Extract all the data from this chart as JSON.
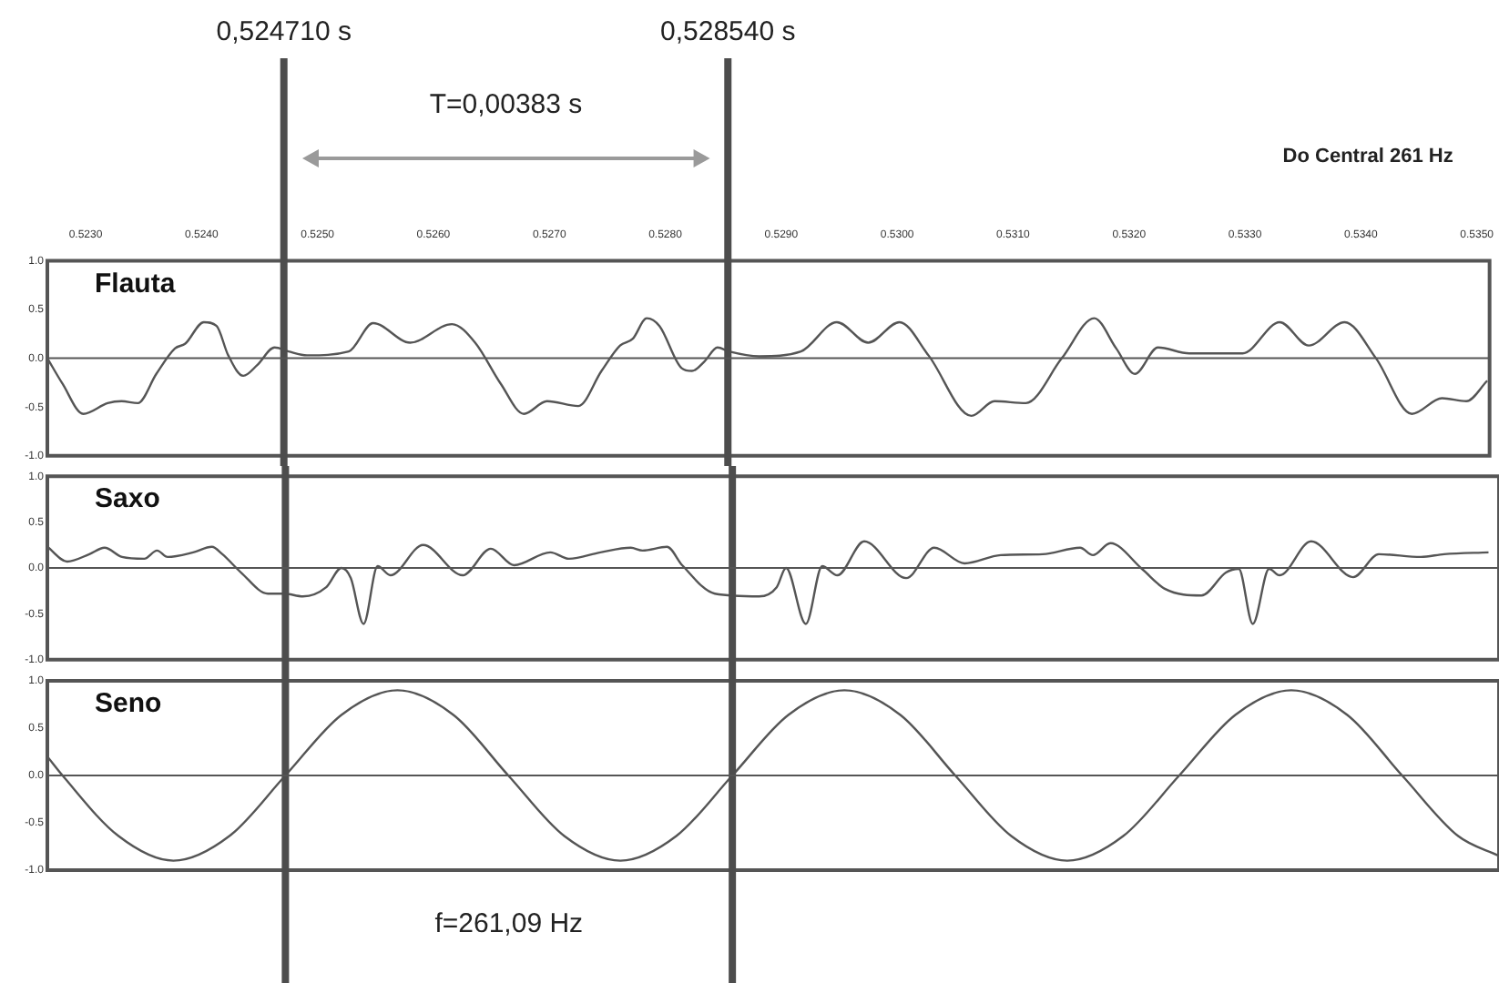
{
  "chart_data": [
    {
      "type": "line",
      "title": "Flauta",
      "annotations": [
        "T=0,00383 s",
        "Do Central 261 Hz"
      ],
      "marker": "none",
      "xlim": [
        0.52267,
        0.53511
      ],
      "ylim": [
        -1,
        1
      ],
      "xticks": [
        {
          "value": 0.523,
          "label": "0.5230"
        },
        {
          "value": 0.524,
          "label": "0.5240"
        },
        {
          "value": 0.525,
          "label": "0.5250"
        },
        {
          "value": 0.526,
          "label": "0.5260"
        },
        {
          "value": 0.527,
          "label": "0.5270"
        },
        {
          "value": 0.528,
          "label": "0.5280"
        },
        {
          "value": 0.529,
          "label": "0.5290"
        },
        {
          "value": 0.53,
          "label": "0.5300"
        },
        {
          "value": 0.531,
          "label": "0.5310"
        },
        {
          "value": 0.532,
          "label": "0.5320"
        },
        {
          "value": 0.533,
          "label": "0.5330"
        },
        {
          "value": 0.534,
          "label": "0.5340"
        },
        {
          "value": 0.535,
          "label": "0.5350"
        }
      ],
      "yticks": [
        {
          "value": 1,
          "label": "1.0"
        },
        {
          "value": 0.5,
          "label": "0.5"
        },
        {
          "value": 0,
          "label": "0.0"
        },
        {
          "value": -0.5,
          "label": "-0.5"
        },
        {
          "value": -1,
          "label": "-1.0"
        }
      ],
      "ref_lines": [
        {
          "axis": "x",
          "value": 0.52471,
          "label": "0,524710 s",
          "color": "#4d4d4d"
        },
        {
          "axis": "x",
          "value": 0.52854,
          "label": "0,528540 s",
          "color": "#4d4d4d"
        },
        {
          "axis": "y",
          "value": 0,
          "color": "#555555"
        }
      ],
      "series": [
        {
          "color": "#555555",
          "x": [
            0.52267,
            0.5228,
            0.52298,
            0.52319,
            0.52331,
            0.52345,
            0.52361,
            0.52377,
            0.52386,
            0.52402,
            0.52413,
            0.52423,
            0.52436,
            0.52448,
            0.52463,
            0.52475,
            0.52491,
            0.52527,
            0.52548,
            0.5258,
            0.52616,
            0.52636,
            0.52658,
            0.52678,
            0.52698,
            0.52725,
            0.52745,
            0.52761,
            0.52772,
            0.52784,
            0.52795,
            0.52814,
            0.52823,
            0.52834,
            0.52845,
            0.52855,
            0.52881,
            0.52917,
            0.52948,
            0.52975,
            0.53002,
            0.53027,
            0.53064,
            0.53084,
            0.53111,
            0.53142,
            0.5317,
            0.53189,
            0.53205,
            0.53225,
            0.53252,
            0.53298,
            0.5333,
            0.53355,
            0.53386,
            0.53413,
            0.53444,
            0.5347,
            0.53491,
            0.53509
          ],
          "values": [
            0,
            -0.26,
            -0.57,
            -0.46,
            -0.44,
            -0.46,
            -0.16,
            0.1,
            0.15,
            0.37,
            0.33,
            0.03,
            -0.18,
            -0.07,
            0.11,
            0.07,
            0.03,
            0.07,
            0.36,
            0.16,
            0.35,
            0.16,
            -0.26,
            -0.57,
            -0.44,
            -0.49,
            -0.13,
            0.13,
            0.2,
            0.41,
            0.33,
            -0.1,
            -0.13,
            -0.03,
            0.11,
            0.07,
            0.02,
            0.07,
            0.37,
            0.16,
            0.37,
            0.03,
            -0.59,
            -0.44,
            -0.46,
            0,
            0.41,
            0.1,
            -0.16,
            0.11,
            0.05,
            0.05,
            0.37,
            0.13,
            0.37,
            0,
            -0.57,
            -0.41,
            -0.44,
            -0.23
          ]
        }
      ]
    },
    {
      "type": "line",
      "title": "Saxo",
      "marker": "none",
      "tick_labels": "y",
      "xlim": [
        0.52267,
        0.53511
      ],
      "ylim": [
        -1,
        1
      ],
      "yticks": [
        {
          "value": 1,
          "label": "1.0"
        },
        {
          "value": 0.5,
          "label": "0.5"
        },
        {
          "value": 0,
          "label": "0.0"
        },
        {
          "value": -0.5,
          "label": "-0.5"
        },
        {
          "value": -1,
          "label": "-1.0"
        }
      ],
      "ref_lines": [
        {
          "axis": "x",
          "value": 0.52471,
          "color": "#4d4d4d"
        },
        {
          "axis": "x",
          "value": 0.52854,
          "color": "#4d4d4d"
        },
        {
          "axis": "y",
          "value": 0,
          "color": "#555555"
        }
      ],
      "series": [
        {
          "color": "#555555",
          "x": [
            0.52267,
            0.52284,
            0.52303,
            0.52316,
            0.52331,
            0.5235,
            0.52361,
            0.5237,
            0.52392,
            0.52408,
            0.52417,
            0.52433,
            0.52456,
            0.5247,
            0.52486,
            0.52506,
            0.52519,
            0.52527,
            0.52538,
            0.5255,
            0.52561,
            0.52589,
            0.52623,
            0.52647,
            0.52667,
            0.52698,
            0.52714,
            0.52741,
            0.52767,
            0.52777,
            0.52798,
            0.52811,
            0.52839,
            0.52877,
            0.52892,
            0.529,
            0.52917,
            0.52931,
            0.52944,
            0.52967,
            0.53003,
            0.53027,
            0.53053,
            0.53084,
            0.5312,
            0.53152,
            0.53163,
            0.53178,
            0.53205,
            0.53225,
            0.53256,
            0.53277,
            0.53288,
            0.533,
            0.53314,
            0.53323,
            0.5335,
            0.53386,
            0.53408,
            0.53444,
            0.53464,
            0.53502
          ],
          "values": [
            0.23,
            0.07,
            0.15,
            0.22,
            0.12,
            0.1,
            0.19,
            0.12,
            0.17,
            0.23,
            0.15,
            -0.05,
            -0.28,
            -0.28,
            -0.31,
            -0.21,
            0,
            -0.11,
            -0.61,
            0.02,
            -0.08,
            0.25,
            -0.08,
            0.21,
            0.03,
            0.17,
            0.1,
            0.17,
            0.22,
            0.19,
            0.23,
            0.03,
            -0.28,
            -0.31,
            -0.21,
            0,
            -0.61,
            0.02,
            -0.08,
            0.29,
            -0.11,
            0.22,
            0.05,
            0.14,
            0.15,
            0.22,
            0.14,
            0.27,
            -0.01,
            -0.23,
            -0.3,
            -0.05,
            -0.01,
            -0.61,
            -0.01,
            -0.08,
            0.29,
            -0.1,
            0.15,
            0.12,
            0.15,
            0.17
          ]
        }
      ]
    },
    {
      "type": "line",
      "title": "Seno",
      "annotations": [
        "f=261,09 Hz"
      ],
      "marker": "none",
      "tick_labels": "y",
      "xlim": [
        0.52267,
        0.53511
      ],
      "ylim": [
        -1,
        1
      ],
      "yticks": [
        {
          "value": 1,
          "label": "1.0"
        },
        {
          "value": 0.5,
          "label": "0.5"
        },
        {
          "value": 0,
          "label": "0.0"
        },
        {
          "value": -0.5,
          "label": "-0.5"
        },
        {
          "value": -1,
          "label": "-1.0"
        }
      ],
      "ref_lines": [
        {
          "axis": "x",
          "value": 0.52471,
          "color": "#4d4d4d"
        },
        {
          "axis": "x",
          "value": 0.52854,
          "color": "#4d4d4d"
        },
        {
          "axis": "y",
          "value": 0,
          "color": "#555555"
        }
      ],
      "series": [
        {
          "color": "#555555",
          "x": [
            0.52267,
            0.5228,
            0.52328,
            0.52375,
            0.52423,
            0.52471,
            0.52519,
            0.52567,
            0.52615,
            0.52662,
            0.5271,
            0.52758,
            0.52806,
            0.52854,
            0.52902,
            0.5295,
            0.52998,
            0.53045,
            0.53093,
            0.53141,
            0.53189,
            0.53237,
            0.53285,
            0.53333,
            0.53381,
            0.53428,
            0.53476,
            0.53511
          ],
          "values": [
            0.2,
            0,
            -0.64,
            -0.9,
            -0.64,
            0,
            0.64,
            0.9,
            0.64,
            0,
            -0.64,
            -0.9,
            -0.64,
            0,
            0.64,
            0.9,
            0.64,
            0,
            -0.64,
            -0.9,
            -0.64,
            0,
            0.64,
            0.9,
            0.64,
            0,
            -0.64,
            -0.85
          ]
        }
      ]
    }
  ]
}
